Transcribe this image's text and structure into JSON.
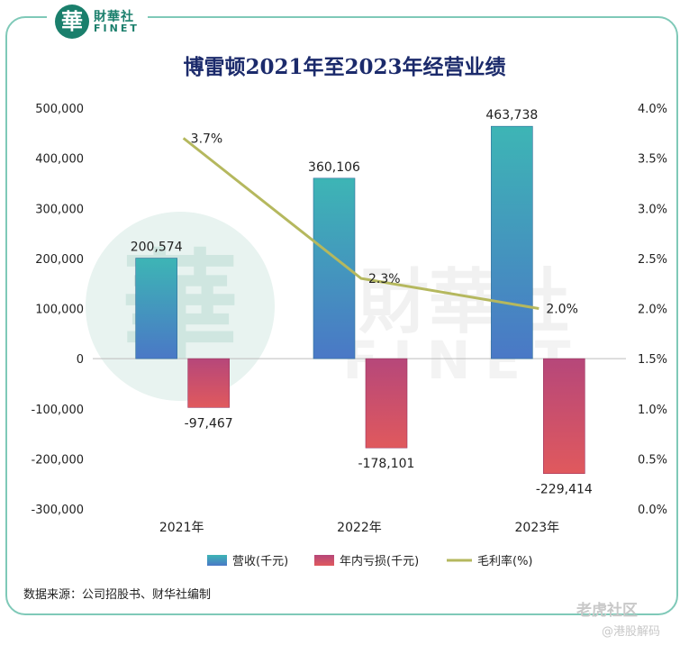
{
  "brand": {
    "logo_char": "華",
    "name_cn": "財華社",
    "name_en": "FINET",
    "watermark_cn": "財華社",
    "watermark_en": "FINET"
  },
  "source_note": "数据来源：公司招股书、财华社编制",
  "corner_watermark": "老虎社区",
  "corner_watermark_sub": "@港股解码",
  "chart_data": {
    "type": "bar",
    "title": "博雷顿2021年至2023年经营业绩",
    "categories": [
      "2021年",
      "2022年",
      "2023年"
    ],
    "series": [
      {
        "name": "营收(千元)",
        "type": "bar",
        "axis": "left",
        "values": [
          200574,
          360106,
          463738
        ],
        "labels": [
          "200,574",
          "360,106",
          "463,738"
        ],
        "color": "#3d9fbf"
      },
      {
        "name": "年内亏损(千元)",
        "type": "bar",
        "axis": "left",
        "values": [
          -97467,
          -178101,
          -229414
        ],
        "labels": [
          "-97,467",
          "-178,101",
          "-229,414"
        ],
        "color": "#c9486e"
      },
      {
        "name": "毛利率(%)",
        "type": "line",
        "axis": "right",
        "values": [
          3.7,
          2.3,
          2.0
        ],
        "labels": [
          "3.7%",
          "2.3%",
          "2.0%"
        ],
        "color": "#b5b85e"
      }
    ],
    "y_left": {
      "min": -300000,
      "max": 500000,
      "step": 100000,
      "ticks": [
        "500,000",
        "400,000",
        "300,000",
        "200,000",
        "100,000",
        "0",
        "-100,000",
        "-200,000",
        "-300,000"
      ]
    },
    "y_right": {
      "min": 0,
      "max": 4.0,
      "step": 0.5,
      "ticks": [
        "4.0%",
        "3.5%",
        "3.0%",
        "2.5%",
        "2.0%",
        "1.5%",
        "1.0%",
        "0.5%",
        "0.0%"
      ]
    },
    "legend_position": "bottom",
    "grid": false
  }
}
